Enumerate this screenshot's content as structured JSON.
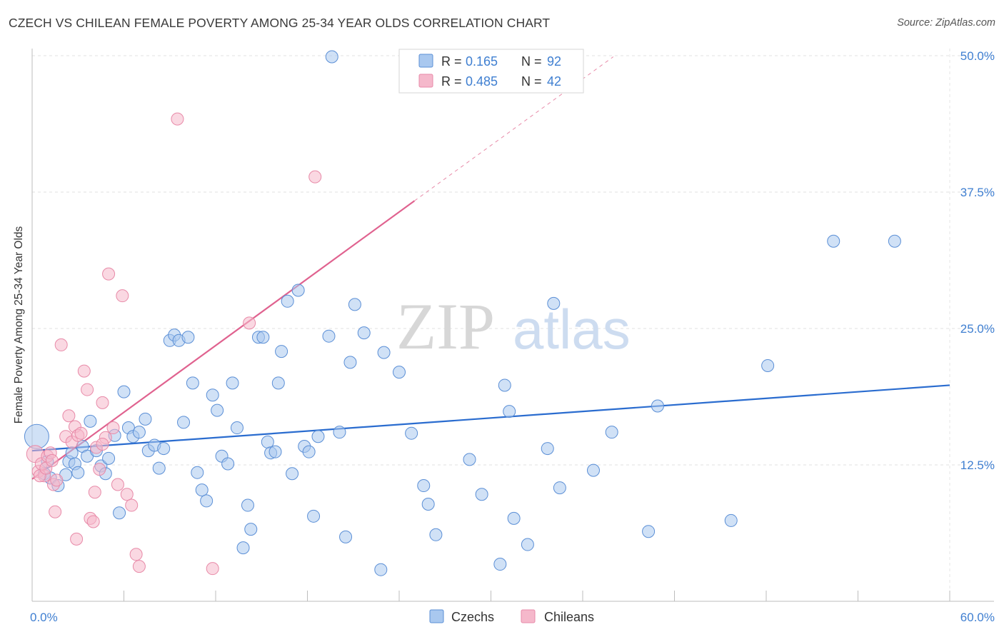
{
  "title": "CZECH VS CHILEAN FEMALE POVERTY AMONG 25-34 YEAR OLDS CORRELATION CHART",
  "source": "Source: ZipAtlas.com",
  "watermark": {
    "zip": "ZIP",
    "atlas": "atlas"
  },
  "colors": {
    "czechs_fill": "#a9c8ef",
    "czechs_stroke": "#5b8fd6",
    "czechs_line": "#2a6ccf",
    "chileans_fill": "#f5b8cb",
    "chileans_stroke": "#e88aa8",
    "chileans_line": "#e0628f",
    "tick_label": "#3f7fd1"
  },
  "legend_stats": [
    {
      "r_label": "R =",
      "r_value": "0.165",
      "n_label": "N =",
      "n_value": "92"
    },
    {
      "r_label": "R =",
      "r_value": "0.485",
      "n_label": "N =",
      "n_value": "42"
    }
  ],
  "chart_data": {
    "type": "scatter",
    "title": "CZECH VS CHILEAN FEMALE POVERTY AMONG 25-34 YEAR OLDS CORRELATION CHART",
    "xlabel": "",
    "ylabel": "Female Poverty Among 25-34 Year Olds",
    "xlim": [
      0,
      60
    ],
    "ylim": [
      0,
      50
    ],
    "x_tick_labels": [
      "0.0%",
      "60.0%"
    ],
    "y_ticks": [
      12.5,
      25.0,
      37.5,
      50.0
    ],
    "y_tick_labels": [
      "12.5%",
      "25.0%",
      "37.5%",
      "50.0%"
    ],
    "grid": true,
    "legend_position": "bottom-center",
    "series": [
      {
        "name": "Czechs",
        "r": 0.165,
        "n": 92,
        "trend": {
          "x": [
            0,
            60
          ],
          "y": [
            13.8,
            19.8
          ]
        },
        "points": [
          [
            0.3,
            15.1,
            3
          ],
          [
            1.0,
            12.8,
            1
          ],
          [
            0.8,
            11.7,
            1
          ],
          [
            1.2,
            11.3,
            1
          ],
          [
            1.7,
            10.6,
            1
          ],
          [
            2.2,
            11.6,
            1
          ],
          [
            2.4,
            12.8,
            1
          ],
          [
            2.6,
            13.6,
            1
          ],
          [
            2.8,
            12.6,
            1
          ],
          [
            3.0,
            11.8,
            1
          ],
          [
            3.3,
            14.2,
            1
          ],
          [
            3.6,
            13.3,
            1
          ],
          [
            3.8,
            16.5,
            1
          ],
          [
            4.2,
            13.8,
            1
          ],
          [
            4.5,
            12.4,
            1
          ],
          [
            4.8,
            11.7,
            1
          ],
          [
            5.0,
            13.1,
            1
          ],
          [
            5.4,
            15.2,
            1
          ],
          [
            5.7,
            8.1,
            1
          ],
          [
            6.0,
            19.2,
            1
          ],
          [
            6.3,
            15.9,
            1
          ],
          [
            6.6,
            15.1,
            1
          ],
          [
            7.0,
            15.5,
            1
          ],
          [
            7.4,
            16.7,
            1
          ],
          [
            7.6,
            13.8,
            1
          ],
          [
            8.0,
            14.3,
            1
          ],
          [
            8.3,
            12.2,
            1
          ],
          [
            8.6,
            14.0,
            1
          ],
          [
            9.0,
            23.9,
            1
          ],
          [
            9.3,
            24.4,
            1
          ],
          [
            9.6,
            23.9,
            1
          ],
          [
            9.9,
            16.4,
            1
          ],
          [
            10.2,
            24.2,
            1
          ],
          [
            10.5,
            20.0,
            1
          ],
          [
            10.8,
            11.8,
            1
          ],
          [
            11.1,
            10.2,
            1
          ],
          [
            11.4,
            9.2,
            1
          ],
          [
            11.8,
            18.9,
            1
          ],
          [
            12.1,
            17.5,
            1
          ],
          [
            12.4,
            13.3,
            1
          ],
          [
            12.8,
            12.6,
            1
          ],
          [
            13.1,
            20.0,
            1
          ],
          [
            13.4,
            15.9,
            1
          ],
          [
            13.8,
            4.9,
            1
          ],
          [
            14.1,
            8.8,
            1
          ],
          [
            14.3,
            6.6,
            1
          ],
          [
            14.8,
            24.2,
            1
          ],
          [
            15.1,
            24.2,
            1
          ],
          [
            15.4,
            14.6,
            1
          ],
          [
            15.6,
            13.6,
            1
          ],
          [
            15.9,
            13.7,
            1
          ],
          [
            16.1,
            20.0,
            1
          ],
          [
            16.3,
            22.9,
            1
          ],
          [
            16.7,
            27.5,
            1
          ],
          [
            17.0,
            11.7,
            1
          ],
          [
            17.4,
            28.5,
            1
          ],
          [
            17.8,
            14.2,
            1
          ],
          [
            18.1,
            13.7,
            1
          ],
          [
            18.4,
            7.8,
            1
          ],
          [
            18.7,
            15.1,
            1
          ],
          [
            19.4,
            24.3,
            1
          ],
          [
            19.6,
            49.9,
            1
          ],
          [
            20.1,
            15.5,
            1
          ],
          [
            20.5,
            5.9,
            1
          ],
          [
            20.8,
            21.9,
            1
          ],
          [
            21.1,
            27.2,
            1
          ],
          [
            21.7,
            24.6,
            1
          ],
          [
            22.8,
            2.9,
            1
          ],
          [
            23.0,
            22.8,
            1
          ],
          [
            24.0,
            21.0,
            1
          ],
          [
            24.8,
            15.4,
            1
          ],
          [
            25.6,
            10.6,
            1
          ],
          [
            25.9,
            8.9,
            1
          ],
          [
            26.4,
            6.1,
            1
          ],
          [
            28.6,
            13.0,
            1
          ],
          [
            29.4,
            9.8,
            1
          ],
          [
            30.6,
            3.4,
            1
          ],
          [
            30.9,
            19.8,
            1
          ],
          [
            31.2,
            17.4,
            1
          ],
          [
            31.5,
            7.6,
            1
          ],
          [
            32.4,
            5.2,
            1
          ],
          [
            33.7,
            14.0,
            1
          ],
          [
            34.1,
            27.3,
            1
          ],
          [
            34.5,
            10.4,
            1
          ],
          [
            36.7,
            12.0,
            1
          ],
          [
            37.9,
            15.5,
            1
          ],
          [
            40.3,
            6.4,
            1
          ],
          [
            40.9,
            17.9,
            1
          ],
          [
            45.7,
            7.4,
            1
          ],
          [
            48.1,
            21.6,
            1
          ],
          [
            52.4,
            33.0,
            1
          ],
          [
            56.4,
            33.0,
            1
          ]
        ]
      },
      {
        "name": "Chileans",
        "r": 0.485,
        "n": 42,
        "trend": {
          "x": [
            0,
            25
          ],
          "y": [
            11.2,
            36.7
          ]
        },
        "trend_extension": {
          "x": [
            25,
            38
          ],
          "y": [
            36.7,
            49.9
          ]
        },
        "points": [
          [
            0.2,
            13.5,
            2
          ],
          [
            0.4,
            11.9,
            1
          ],
          [
            0.6,
            12.6,
            1
          ],
          [
            0.8,
            11.5,
            1
          ],
          [
            1.0,
            13.3,
            1
          ],
          [
            1.2,
            13.6,
            1
          ],
          [
            1.4,
            10.7,
            1
          ],
          [
            1.6,
            11.1,
            1
          ],
          [
            1.9,
            23.5,
            1
          ],
          [
            2.2,
            15.1,
            1
          ],
          [
            2.4,
            17.0,
            1
          ],
          [
            2.6,
            14.6,
            1
          ],
          [
            2.8,
            16.0,
            1
          ],
          [
            3.0,
            15.2,
            1
          ],
          [
            3.2,
            15.4,
            1
          ],
          [
            3.4,
            21.1,
            1
          ],
          [
            3.6,
            19.4,
            1
          ],
          [
            3.8,
            7.6,
            1
          ],
          [
            4.0,
            7.3,
            1
          ],
          [
            4.2,
            14.1,
            1
          ],
          [
            4.4,
            12.1,
            1
          ],
          [
            4.6,
            18.2,
            1
          ],
          [
            4.8,
            15.0,
            1
          ],
          [
            5.0,
            30.0,
            1
          ],
          [
            5.3,
            15.9,
            1
          ],
          [
            5.6,
            10.7,
            1
          ],
          [
            5.9,
            28.0,
            1
          ],
          [
            6.2,
            9.8,
            1
          ],
          [
            6.5,
            8.8,
            1
          ],
          [
            6.8,
            4.3,
            1
          ],
          [
            7.0,
            3.2,
            1
          ],
          [
            2.9,
            5.7,
            1
          ],
          [
            1.5,
            8.2,
            1
          ],
          [
            4.1,
            10.0,
            1
          ],
          [
            4.6,
            14.4,
            1
          ],
          [
            9.5,
            44.2,
            1
          ],
          [
            11.8,
            3.0,
            1
          ],
          [
            14.2,
            25.5,
            1
          ],
          [
            18.5,
            38.9,
            1
          ],
          [
            0.5,
            11.5,
            1
          ],
          [
            0.9,
            12.2,
            1
          ],
          [
            1.3,
            12.9,
            1
          ]
        ]
      }
    ]
  }
}
